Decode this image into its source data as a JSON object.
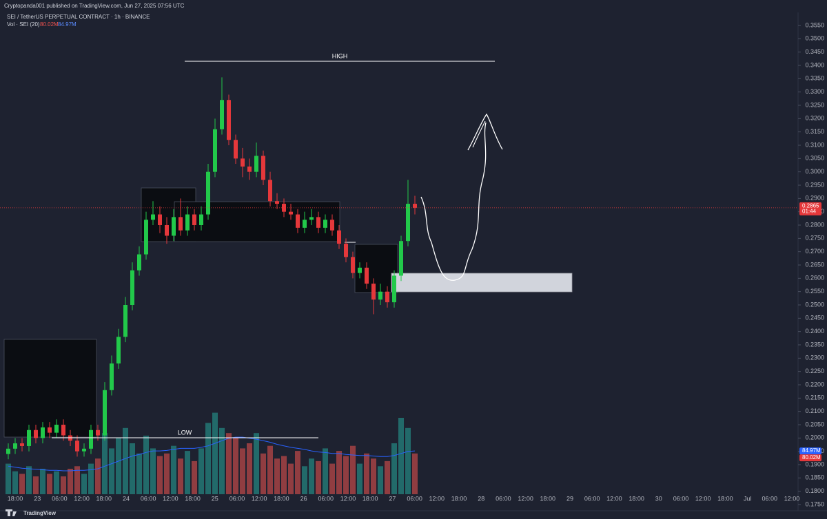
{
  "chart_data": {
    "type": "candlestick",
    "source": "Cryptopanda001 published on TradingView.com, Jun 27, 2025 07:56 UTC",
    "title": "SEI / TetherUS PERPETUAL CONTRACT · 1h · BINANCE",
    "volume_title": "Vol · SEI (20)",
    "volume_last_label": "80.02M",
    "volume_ma_label": "84.97M",
    "last_price_label": "0.2865",
    "countdown": "01:44",
    "annotations": [
      "HIGH",
      "LOW"
    ],
    "brand": "TradingView",
    "up_color": "#22c94a",
    "down_color": "#e5383b",
    "volume_up_color": "#26a69a",
    "volume_down_color": "#ef5350",
    "volume_ma_color": "#2962ff",
    "x_labels": [
      "18:00",
      "23",
      "06:00",
      "12:00",
      "18:00",
      "24",
      "06:00",
      "12:00",
      "18:00",
      "25",
      "06:00",
      "12:00",
      "18:00",
      "26",
      "06:00",
      "12:00",
      "18:00",
      "27",
      "06:00",
      "12:00",
      "18:00",
      "28",
      "06:00",
      "12:00",
      "18:00",
      "29",
      "06:00",
      "12:00",
      "18:00",
      "30",
      "06:00",
      "12:00",
      "18:00",
      "Jul",
      "06:00",
      "12:00"
    ],
    "open": [
      0.194,
      0.196,
      0.198,
      0.197,
      0.203,
      0.2,
      0.204,
      0.202,
      0.205,
      0.201,
      0.199,
      0.195,
      0.196,
      0.203,
      0.201,
      0.218,
      0.228,
      0.238,
      0.25,
      0.263,
      0.269,
      0.282,
      0.284,
      0.28,
      0.276,
      0.283,
      0.278,
      0.284,
      0.28,
      0.284,
      0.3,
      0.316,
      0.327,
      0.312,
      0.305,
      0.302,
      0.3,
      0.306,
      0.297,
      0.289,
      0.288,
      0.285,
      0.284,
      0.279,
      0.282,
      0.283,
      0.279,
      0.282,
      0.278,
      0.273,
      0.268,
      0.262,
      0.264,
      0.258,
      0.252,
      0.255,
      0.251,
      0.261,
      0.274,
      0.288
    ],
    "high": [
      0.198,
      0.2,
      0.2,
      0.205,
      0.205,
      0.206,
      0.206,
      0.207,
      0.207,
      0.203,
      0.201,
      0.198,
      0.205,
      0.205,
      0.221,
      0.231,
      0.241,
      0.253,
      0.266,
      0.272,
      0.285,
      0.289,
      0.287,
      0.283,
      0.286,
      0.29,
      0.287,
      0.286,
      0.287,
      0.303,
      0.32,
      0.3355,
      0.329,
      0.314,
      0.309,
      0.305,
      0.311,
      0.308,
      0.3,
      0.292,
      0.29,
      0.288,
      0.286,
      0.285,
      0.286,
      0.285,
      0.284,
      0.284,
      0.28,
      0.275,
      0.27,
      0.266,
      0.266,
      0.26,
      0.258,
      0.257,
      0.263,
      0.276,
      0.297,
      0.291
    ],
    "low": [
      0.192,
      0.194,
      0.195,
      0.195,
      0.198,
      0.198,
      0.2,
      0.2,
      0.199,
      0.197,
      0.193,
      0.193,
      0.194,
      0.199,
      0.199,
      0.216,
      0.226,
      0.236,
      0.248,
      0.261,
      0.267,
      0.28,
      0.277,
      0.273,
      0.274,
      0.276,
      0.276,
      0.278,
      0.278,
      0.282,
      0.298,
      0.314,
      0.31,
      0.303,
      0.298,
      0.297,
      0.298,
      0.295,
      0.287,
      0.286,
      0.283,
      0.282,
      0.277,
      0.277,
      0.28,
      0.277,
      0.277,
      0.276,
      0.271,
      0.266,
      0.26,
      0.26,
      0.256,
      0.2465,
      0.25,
      0.249,
      0.249,
      0.259,
      0.272,
      0.284
    ],
    "close": [
      0.196,
      0.198,
      0.197,
      0.203,
      0.2,
      0.204,
      0.202,
      0.205,
      0.201,
      0.199,
      0.195,
      0.196,
      0.203,
      0.201,
      0.218,
      0.228,
      0.238,
      0.25,
      0.263,
      0.269,
      0.282,
      0.284,
      0.28,
      0.276,
      0.283,
      0.278,
      0.284,
      0.28,
      0.284,
      0.3,
      0.316,
      0.327,
      0.312,
      0.305,
      0.302,
      0.3,
      0.306,
      0.297,
      0.289,
      0.288,
      0.285,
      0.284,
      0.279,
      0.282,
      0.283,
      0.279,
      0.282,
      0.278,
      0.273,
      0.268,
      0.262,
      0.264,
      0.258,
      0.252,
      0.255,
      0.251,
      0.261,
      0.274,
      0.288,
      0.2865
    ],
    "volume": [
      60,
      45,
      40,
      55,
      35,
      50,
      40,
      45,
      35,
      50,
      55,
      40,
      60,
      70,
      120,
      90,
      110,
      130,
      100,
      80,
      115,
      90,
      75,
      80,
      95,
      70,
      85,
      65,
      90,
      140,
      160,
      130,
      120,
      110,
      90,
      100,
      120,
      80,
      95,
      70,
      75,
      60,
      85,
      55,
      70,
      65,
      90,
      60,
      85,
      75,
      95,
      60,
      80,
      70,
      55,
      65,
      100,
      150,
      130,
      80.02
    ],
    "volume_ma": [
      55,
      53,
      51,
      50,
      49,
      48,
      47,
      47,
      46,
      46,
      47,
      47,
      48,
      50,
      55,
      60,
      65,
      70,
      75,
      78,
      82,
      85,
      85,
      86,
      88,
      90,
      90,
      90,
      92,
      95,
      100,
      105,
      110,
      112,
      112,
      110,
      108,
      105,
      102,
      98,
      95,
      92,
      90,
      88,
      85,
      83,
      82,
      80,
      80,
      78,
      77,
      76,
      76,
      75,
      74,
      74,
      76,
      80,
      84,
      84.97
    ],
    "ylim": [
      0.1725,
      0.3575
    ],
    "yticks": [
      {
        "value": 0.355,
        "label": "0.3550"
      },
      {
        "value": 0.35,
        "label": "0.3500"
      },
      {
        "value": 0.345,
        "label": "0.3450"
      },
      {
        "value": 0.34,
        "label": "0.3400"
      },
      {
        "value": 0.335,
        "label": "0.3350"
      },
      {
        "value": 0.33,
        "label": "0.3300"
      },
      {
        "value": 0.325,
        "label": "0.3250"
      },
      {
        "value": 0.32,
        "label": "0.3200"
      },
      {
        "value": 0.315,
        "label": "0.3150"
      },
      {
        "value": 0.31,
        "label": "0.3100"
      },
      {
        "value": 0.305,
        "label": "0.3050"
      },
      {
        "value": 0.3,
        "label": "0.3000"
      },
      {
        "value": 0.295,
        "label": "0.2950"
      },
      {
        "value": 0.29,
        "label": "0.2900"
      },
      {
        "value": 0.285,
        "label": "0.2850"
      },
      {
        "value": 0.28,
        "label": "0.2800"
      },
      {
        "value": 0.275,
        "label": "0.2750"
      },
      {
        "value": 0.27,
        "label": "0.2700"
      },
      {
        "value": 0.265,
        "label": "0.2650"
      },
      {
        "value": 0.26,
        "label": "0.2600"
      },
      {
        "value": 0.255,
        "label": "0.2550"
      },
      {
        "value": 0.25,
        "label": "0.2500"
      },
      {
        "value": 0.245,
        "label": "0.2450"
      },
      {
        "value": 0.24,
        "label": "0.2400"
      },
      {
        "value": 0.235,
        "label": "0.2350"
      },
      {
        "value": 0.23,
        "label": "0.2300"
      },
      {
        "value": 0.225,
        "label": "0.2250"
      },
      {
        "value": 0.22,
        "label": "0.2200"
      },
      {
        "value": 0.215,
        "label": "0.2150"
      },
      {
        "value": 0.21,
        "label": "0.2100"
      },
      {
        "value": 0.205,
        "label": "0.2050"
      },
      {
        "value": 0.2,
        "label": "0.2000"
      },
      {
        "value": 0.195,
        "label": "0.1950"
      },
      {
        "value": 0.19,
        "label": "0.1900"
      },
      {
        "value": 0.185,
        "label": "0.1850"
      },
      {
        "value": 0.18,
        "label": "0.1800"
      },
      {
        "value": 0.175,
        "label": "0.1750"
      }
    ]
  }
}
